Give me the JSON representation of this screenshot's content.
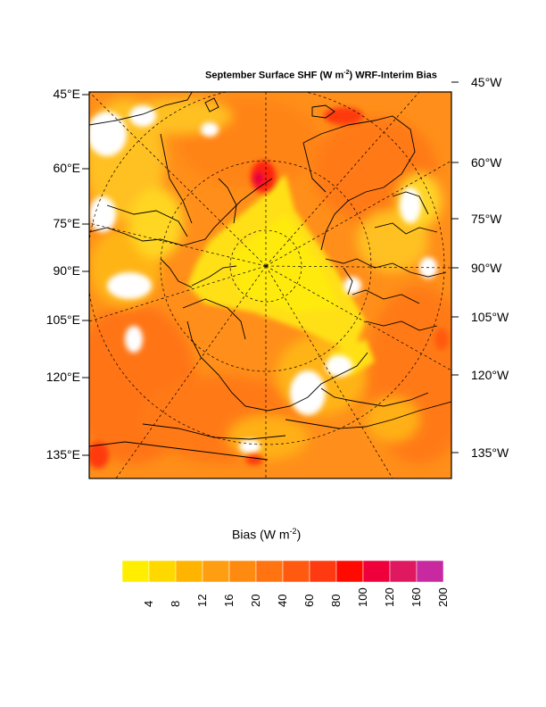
{
  "title": {
    "pre": "September Surface SHF (W m",
    "sup": "-2",
    "post": ") WRF-Interim Bias"
  },
  "left_labels": [
    "45°E",
    "60°E",
    "75°E",
    "90°E",
    "105°E",
    "120°E",
    "135°E"
  ],
  "right_labels": [
    "45°W",
    "60°W",
    "75°W",
    "90°W",
    "105°W",
    "120°W",
    "135°W"
  ],
  "colorbar": {
    "title_pre": "Bias (W m",
    "title_sup": "-2",
    "title_post": ")",
    "labels": [
      "4",
      "8",
      "12",
      "16",
      "20",
      "40",
      "60",
      "80",
      "100",
      "120",
      "160",
      "200"
    ],
    "colors": [
      "#ffee00",
      "#ffd800",
      "#ffb400",
      "#ff9e10",
      "#ff8a10",
      "#ff7410",
      "#ff5a10",
      "#ff3a10",
      "#ff0a00",
      "#f0003a",
      "#e01860",
      "#c828a0"
    ]
  }
}
